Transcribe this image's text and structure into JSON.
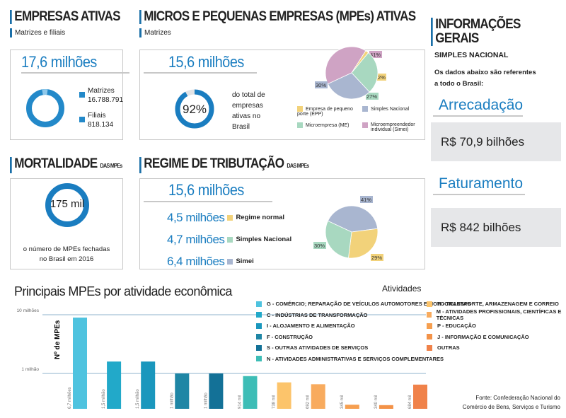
{
  "empresas_ativas": {
    "title": "EMPRESAS ATIVAS",
    "subtitle": "Matrizes e filiais",
    "total": "17,6 milhões",
    "matrizes_label": "Matrizes",
    "matrizes_value": "16.788.791",
    "filiais_label": "Filiais",
    "filiais_value": "818.134",
    "color": "#2389c9"
  },
  "mpes_ativas": {
    "title": "MICROS E PEQUENAS EMPRESAS (MPEs) ATIVAS",
    "subtitle": "Matrizes",
    "total": "15,6 milhões",
    "percent": "92%",
    "percent_value": 92,
    "description": "do total de empresas ativas no Brasil",
    "pie": [
      {
        "label": "Microempreendedor individual (Simei)",
        "value": 41,
        "text": "41%",
        "color": "#cfa3c4"
      },
      {
        "label": "Empresa de pequeno porte (EPP)",
        "value": 2,
        "text": "2%",
        "color": "#f2d27a"
      },
      {
        "label": "Microempresa (ME)",
        "value": 27,
        "text": "27%",
        "color": "#a8d8c0"
      },
      {
        "label": "Simples Nacional",
        "value": 30,
        "text": "30%",
        "color": "#a9b6d0"
      }
    ]
  },
  "mortalidade": {
    "title": "MORTALIDADE",
    "title_suffix": "DAS MPEs",
    "value": "175 mil",
    "description_1": "o número de MPEs fechadas",
    "description_2": "no Brasil em 2016"
  },
  "regime": {
    "title": "REGIME DE TRIBUTAÇÃO",
    "title_suffix": "DAS MPEs",
    "total": "15,6 milhões",
    "items": [
      {
        "value": "4,5 milhões",
        "label": "Regime normal",
        "color": "#f2d27a"
      },
      {
        "value": "4,7 milhões",
        "label": "Simples Nacional",
        "color": "#a8d8c0"
      },
      {
        "value": "6,4 milhões",
        "label": "Simei",
        "color": "#a9b6d0"
      }
    ],
    "pie": [
      {
        "label": "Simei",
        "value": 41,
        "text": "41%",
        "color": "#a9b6d0"
      },
      {
        "label": "Regime normal",
        "value": 29,
        "text": "29%",
        "color": "#f2d27a"
      },
      {
        "label": "Simples Nacional",
        "value": 30,
        "text": "30%",
        "color": "#a8d8c0"
      }
    ]
  },
  "info": {
    "title": "INFORMAÇÕES GERAIS",
    "section": "SIMPLES NACIONAL",
    "note_1": "Os dados abaixo são referentes",
    "note_2": "a todo o Brasil:",
    "arrecadacao_label": "Arrecadação",
    "arrecadacao_value": "R$ 70,9 bilhões",
    "faturamento_label": "Faturamento",
    "faturamento_value": "R$ 842 bilhões"
  },
  "chart_data": {
    "type": "bar",
    "title": "Principais MPEs por atividade econômica",
    "ylabel": "Nº de MPEs",
    "legend_title": "Atividades",
    "scale": "log",
    "yticks": [
      "10 milhões",
      "1 milhão"
    ],
    "legend": "right",
    "categories": [
      "G - COMÉRCIO; REPARAÇÃO DE VEÍCULOS AUTOMOTORES E MOTOCICLETAS",
      "C - INDÚSTRIAS DE TRANSFORMAÇÃO",
      "I - ALOJAMENTO E ALIMENTAÇÃO",
      "F - CONSTRUÇÃO",
      "S - OUTRAS ATIVIDADES DE SERVIÇOS",
      "N - ATIVIDADES ADMINISTRATIVAS E SERVIÇOS COMPLEMENTARES",
      "H - TRANSPORTE, ARMAZENAGEM E CORREIO",
      "M - ATIVIDADES PROFISSIONAIS, CIENTÍFICAS E TÉCNICAS",
      "P - EDUCAÇÃO",
      "J - INFORMAÇÃO E COMUNICAÇÃO",
      "OUTRAS"
    ],
    "values": [
      6700000,
      1500000,
      1500000,
      1000000,
      1000000,
      914000,
      738000,
      692000,
      345000,
      340000,
      684000
    ],
    "labels": [
      "6,7 milhões",
      "1,5 milhão",
      "1,5 milhão",
      "1 milhão",
      "1 milhão",
      "914 mil",
      "738 mil",
      "692 mil",
      "345 mil",
      "340 mil",
      "684 mil"
    ],
    "colors": [
      "#4fc3df",
      "#22a9c9",
      "#1a97bd",
      "#1f86a5",
      "#137197",
      "#3dbdb6",
      "#fcc46b",
      "#f8ab5e",
      "#f69f50",
      "#f39248",
      "#f0824a"
    ]
  },
  "source_1": "Fonte: Confederação Nacional do",
  "source_2": "Comércio de Bens, Serviços e Turismo"
}
